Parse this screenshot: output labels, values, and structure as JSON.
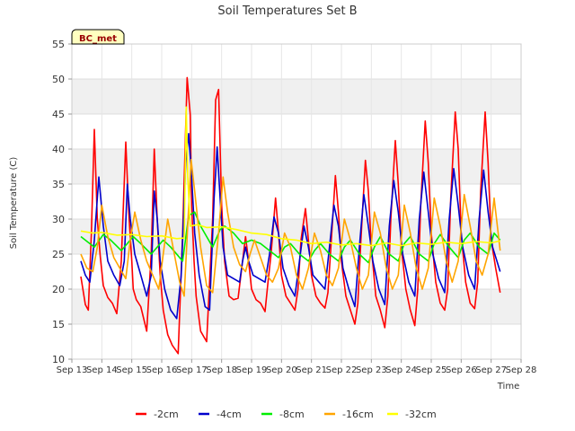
{
  "chart_data": {
    "type": "line",
    "title": "Soil Temperatures Set B",
    "xlabel": "Time",
    "ylabel": "Soil Temperature (C)",
    "badge": "BC_met",
    "xlim": [
      13,
      28
    ],
    "ylim": [
      10,
      55
    ],
    "x_ticks": [
      {
        "value": 13,
        "label": "Sep 13"
      },
      {
        "value": 14,
        "label": "Sep 14"
      },
      {
        "value": 15,
        "label": "Sep 15"
      },
      {
        "value": 16,
        "label": "Sep 16"
      },
      {
        "value": 17,
        "label": "Sep 17"
      },
      {
        "value": 18,
        "label": "Sep 18"
      },
      {
        "value": 19,
        "label": "Sep 19"
      },
      {
        "value": 20,
        "label": "Sep 20"
      },
      {
        "value": 21,
        "label": "Sep 21"
      },
      {
        "value": 22,
        "label": "Sep 22"
      },
      {
        "value": 23,
        "label": "Sep 23"
      },
      {
        "value": 24,
        "label": "Sep 24"
      },
      {
        "value": 25,
        "label": "Sep 25"
      },
      {
        "value": 26,
        "label": "Sep 26"
      },
      {
        "value": 27,
        "label": "Sep 27"
      },
      {
        "value": 28,
        "label": "Sep 28"
      }
    ],
    "y_ticks": [
      {
        "value": 10,
        "label": "10"
      },
      {
        "value": 15,
        "label": "15"
      },
      {
        "value": 20,
        "label": "20"
      },
      {
        "value": 25,
        "label": "25"
      },
      {
        "value": 30,
        "label": "30"
      },
      {
        "value": 35,
        "label": "35"
      },
      {
        "value": 40,
        "label": "40"
      },
      {
        "value": 45,
        "label": "45"
      },
      {
        "value": 50,
        "label": "50"
      },
      {
        "value": 55,
        "label": "55"
      }
    ],
    "grid": true,
    "legend_position": "bottom-center",
    "series": [
      {
        "name": "-2cm",
        "color": "#ff0000",
        "x": [
          13.3,
          13.45,
          13.55,
          13.65,
          13.75,
          13.85,
          13.95,
          14.05,
          14.2,
          14.35,
          14.5,
          14.65,
          14.8,
          14.9,
          15.0,
          15.05,
          15.15,
          15.3,
          15.5,
          15.65,
          15.75,
          15.85,
          15.95,
          16.05,
          16.2,
          16.35,
          16.55,
          16.7,
          16.85,
          16.95,
          17.0,
          17.08,
          17.15,
          17.3,
          17.5,
          17.7,
          17.8,
          17.9,
          18.0,
          18.1,
          18.25,
          18.4,
          18.55,
          18.7,
          18.8,
          18.9,
          19.0,
          19.15,
          19.3,
          19.45,
          19.55,
          19.65,
          19.8,
          19.9,
          20.0,
          20.15,
          20.3,
          20.45,
          20.55,
          20.65,
          20.8,
          20.9,
          21.0,
          21.15,
          21.3,
          21.45,
          21.55,
          21.65,
          21.8,
          21.9,
          22.0,
          22.15,
          22.3,
          22.45,
          22.55,
          22.65,
          22.8,
          22.9,
          23.0,
          23.15,
          23.3,
          23.45,
          23.55,
          23.65,
          23.8,
          23.9,
          24.0,
          24.15,
          24.3,
          24.45,
          24.55,
          24.65,
          24.8,
          24.9,
          25.0,
          25.15,
          25.3,
          25.45,
          25.55,
          25.65,
          25.8,
          25.9,
          26.0,
          26.15,
          26.3,
          26.45,
          26.55,
          26.65,
          26.8,
          26.9,
          27.0,
          27.15,
          27.3
        ],
        "y": [
          21.8,
          17.8,
          17.0,
          28.0,
          42.8,
          30.0,
          24.5,
          20.5,
          18.8,
          18.0,
          16.5,
          24.0,
          41.0,
          31.0,
          24.0,
          20.0,
          18.5,
          17.5,
          14.0,
          25.0,
          40.0,
          30.0,
          22.0,
          17.0,
          13.5,
          12.0,
          10.8,
          28.0,
          50.2,
          45.0,
          32.0,
          24.0,
          19.0,
          14.0,
          12.5,
          30.0,
          47.0,
          48.5,
          32.0,
          24.0,
          19.0,
          18.5,
          18.7,
          24.0,
          27.5,
          24.0,
          20.0,
          18.5,
          18.0,
          16.8,
          21.0,
          25.0,
          33.0,
          28.0,
          22.0,
          19.0,
          18.0,
          17.0,
          20.0,
          27.0,
          31.5,
          27.0,
          22.0,
          19.0,
          18.0,
          17.3,
          19.5,
          26.0,
          36.2,
          31.0,
          24.0,
          19.0,
          17.0,
          15.0,
          18.0,
          27.0,
          38.4,
          34.0,
          26.0,
          19.0,
          17.0,
          14.5,
          19.0,
          30.0,
          41.2,
          35.0,
          26.0,
          20.0,
          17.0,
          14.8,
          20.0,
          32.0,
          44.0,
          38.0,
          28.0,
          21.0,
          18.0,
          17.0,
          20.0,
          33.0,
          45.3,
          40.0,
          28.0,
          21.0,
          18.0,
          17.2,
          21.0,
          34.0,
          45.3,
          38.0,
          27.0,
          23.0,
          19.5
        ]
      },
      {
        "name": "-4cm",
        "color": "#0000cc",
        "x": [
          13.3,
          13.45,
          13.6,
          13.75,
          13.9,
          14.05,
          14.2,
          14.4,
          14.6,
          14.75,
          14.85,
          14.95,
          15.1,
          15.3,
          15.5,
          15.65,
          15.75,
          15.85,
          15.95,
          16.1,
          16.3,
          16.5,
          16.65,
          16.8,
          16.9,
          17.0,
          17.1,
          17.25,
          17.45,
          17.6,
          17.75,
          17.85,
          17.95,
          18.05,
          18.2,
          18.4,
          18.6,
          18.7,
          18.8,
          18.9,
          19.05,
          19.25,
          19.45,
          19.6,
          19.75,
          19.9,
          20.05,
          20.25,
          20.45,
          20.6,
          20.75,
          20.9,
          21.05,
          21.25,
          21.45,
          21.6,
          21.75,
          21.9,
          22.05,
          22.25,
          22.45,
          22.6,
          22.75,
          22.9,
          23.05,
          23.25,
          23.45,
          23.6,
          23.75,
          23.9,
          24.05,
          24.25,
          24.45,
          24.6,
          24.75,
          24.9,
          25.05,
          25.25,
          25.45,
          25.6,
          25.75,
          25.9,
          26.05,
          26.25,
          26.45,
          26.6,
          26.75,
          26.9,
          27.05,
          27.3
        ],
        "y": [
          24.0,
          22.0,
          21.0,
          27.0,
          36.0,
          29.0,
          24.0,
          22.0,
          20.5,
          24.0,
          35.0,
          30.0,
          25.0,
          22.0,
          19.0,
          22.0,
          34.0,
          30.0,
          24.0,
          20.0,
          17.0,
          15.8,
          22.0,
          38.0,
          42.2,
          36.0,
          28.0,
          22.0,
          17.5,
          17.0,
          33.0,
          40.3,
          33.0,
          26.0,
          22.0,
          21.5,
          21.0,
          24.0,
          26.0,
          24.0,
          22.0,
          21.5,
          21.0,
          25.0,
          30.3,
          28.0,
          23.0,
          20.5,
          19.0,
          24.0,
          29.0,
          26.0,
          22.0,
          21.0,
          20.0,
          26.0,
          32.0,
          29.0,
          23.0,
          20.0,
          17.5,
          26.0,
          33.5,
          29.0,
          24.0,
          20.0,
          17.8,
          29.0,
          35.5,
          31.0,
          25.0,
          21.0,
          19.0,
          30.0,
          36.7,
          31.0,
          25.0,
          21.5,
          19.5,
          30.0,
          37.2,
          32.0,
          26.0,
          22.0,
          20.0,
          30.0,
          37.0,
          31.0,
          26.0,
          22.5
        ]
      },
      {
        "name": "-8cm",
        "color": "#00ee00",
        "x": [
          13.3,
          13.75,
          14.05,
          14.3,
          14.65,
          15.05,
          15.3,
          15.65,
          16.05,
          16.3,
          16.7,
          16.9,
          17.1,
          17.3,
          17.5,
          17.7,
          17.95,
          18.1,
          18.4,
          18.7,
          19.0,
          19.3,
          19.6,
          19.9,
          20.1,
          20.3,
          20.6,
          20.9,
          21.1,
          21.3,
          21.6,
          21.9,
          22.1,
          22.3,
          22.6,
          22.9,
          23.1,
          23.3,
          23.6,
          23.9,
          24.1,
          24.3,
          24.6,
          24.9,
          25.1,
          25.3,
          25.6,
          25.9,
          26.1,
          26.3,
          26.6,
          26.9,
          27.1,
          27.3
        ],
        "y": [
          27.5,
          26.0,
          27.8,
          27.0,
          25.5,
          27.5,
          26.5,
          25.0,
          27.0,
          26.0,
          24.0,
          30.5,
          31.0,
          29.0,
          27.5,
          26.0,
          28.5,
          29.0,
          28.0,
          26.5,
          27.0,
          26.5,
          25.5,
          24.5,
          26.0,
          26.5,
          25.0,
          24.0,
          25.5,
          26.5,
          25.0,
          24.0,
          26.0,
          27.0,
          25.0,
          23.8,
          26.0,
          27.5,
          25.0,
          24.0,
          26.5,
          27.5,
          25.0,
          24.0,
          26.5,
          27.8,
          26.0,
          24.5,
          27.0,
          28.0,
          26.0,
          25.0,
          28.0,
          27.0
        ]
      },
      {
        "name": "-16cm",
        "color": "#ffa500",
        "x": [
          13.3,
          13.5,
          13.7,
          13.85,
          14.0,
          14.2,
          14.4,
          14.6,
          14.8,
          14.95,
          15.1,
          15.3,
          15.5,
          15.7,
          15.9,
          16.05,
          16.2,
          16.4,
          16.6,
          16.75,
          16.88,
          16.98,
          17.1,
          17.3,
          17.5,
          17.7,
          17.9,
          18.05,
          18.2,
          18.4,
          18.6,
          18.8,
          18.95,
          19.1,
          19.3,
          19.5,
          19.7,
          19.9,
          20.1,
          20.3,
          20.5,
          20.7,
          20.9,
          21.1,
          21.3,
          21.5,
          21.7,
          21.9,
          22.1,
          22.3,
          22.5,
          22.7,
          22.9,
          23.1,
          23.3,
          23.5,
          23.7,
          23.9,
          24.1,
          24.3,
          24.5,
          24.7,
          24.9,
          25.1,
          25.3,
          25.5,
          25.7,
          25.9,
          26.1,
          26.3,
          26.5,
          26.7,
          26.9,
          27.1,
          27.3
        ],
        "y": [
          25.0,
          23.0,
          22.5,
          26.0,
          32.0,
          27.5,
          24.5,
          23.0,
          21.5,
          27.0,
          31.0,
          27.0,
          24.0,
          22.0,
          20.0,
          25.0,
          30.0,
          25.5,
          21.0,
          19.0,
          30.0,
          38.5,
          34.0,
          26.0,
          20.5,
          19.5,
          28.0,
          36.0,
          31.0,
          26.0,
          23.5,
          22.5,
          25.0,
          27.0,
          24.5,
          22.0,
          21.0,
          23.0,
          28.0,
          26.0,
          22.0,
          20.0,
          23.0,
          28.0,
          25.5,
          22.0,
          20.5,
          23.0,
          30.0,
          27.0,
          23.0,
          20.0,
          22.0,
          31.0,
          28.0,
          23.0,
          20.0,
          22.0,
          32.0,
          28.0,
          23.0,
          20.0,
          23.0,
          33.0,
          29.0,
          24.0,
          21.0,
          24.0,
          33.5,
          29.0,
          24.0,
          22.0,
          25.0,
          33.0,
          25.5
        ]
      },
      {
        "name": "-32cm",
        "color": "#ffff00",
        "x": [
          13.3,
          13.7,
          14.0,
          14.5,
          15.0,
          15.5,
          16.0,
          16.5,
          16.75,
          16.82,
          16.87,
          16.95,
          17.2,
          17.5,
          18.0,
          18.5,
          19.0,
          19.5,
          20.0,
          20.5,
          21.0,
          21.5,
          22.0,
          22.5,
          23.0,
          23.5,
          24.0,
          24.5,
          25.0,
          25.5,
          26.0,
          26.5,
          27.0,
          27.3
        ],
        "y": [
          28.3,
          28.0,
          28.1,
          27.7,
          27.8,
          27.5,
          27.6,
          27.2,
          27.3,
          46.0,
          36.0,
          29.0,
          29.2,
          28.8,
          28.9,
          28.5,
          28.0,
          27.8,
          27.2,
          27.0,
          26.5,
          26.7,
          26.3,
          26.5,
          26.2,
          26.6,
          26.2,
          26.6,
          26.4,
          26.7,
          26.5,
          26.8,
          26.6,
          26.9
        ]
      }
    ]
  }
}
